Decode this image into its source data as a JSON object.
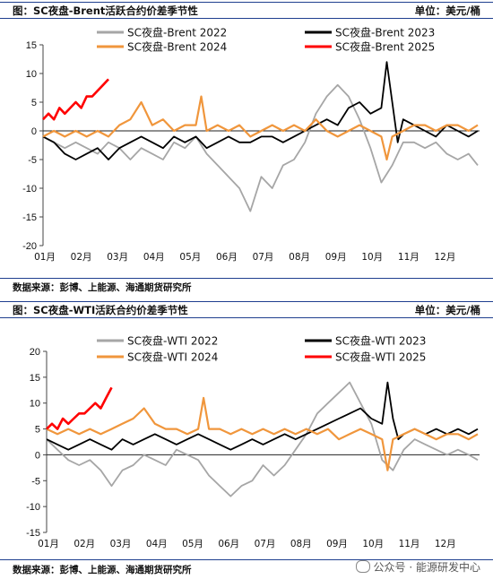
{
  "watermark": "公众号 · 能源研发中心",
  "chart_data": [
    {
      "type": "line",
      "title": "图：SC夜盘-Brent活跃合约价差季节性",
      "unit": "单位：美元/桶",
      "source": "数据来源：彭博、上能源、海通期货研究所",
      "ylim": [
        -20,
        15
      ],
      "yticks": [
        -20,
        -15,
        -10,
        -5,
        0,
        5,
        10,
        15
      ],
      "categories": [
        "01月",
        "02月",
        "03月",
        "04月",
        "05月",
        "06月",
        "07月",
        "08月",
        "09月",
        "10月",
        "11月",
        "12月"
      ],
      "x_label_positions": [
        0,
        1,
        2,
        3,
        4,
        5,
        6,
        7,
        8,
        9,
        10,
        11
      ],
      "grid": false,
      "legend_position": "top",
      "series": [
        {
          "name": "SC夜盘-Brent 2022",
          "color": "#a6a6a6",
          "x": [
            0,
            0.3,
            0.6,
            0.9,
            1.2,
            1.5,
            1.8,
            2.1,
            2.4,
            2.7,
            3.0,
            3.3,
            3.6,
            3.9,
            4.2,
            4.5,
            4.8,
            5.1,
            5.4,
            5.7,
            6.0,
            6.3,
            6.6,
            6.9,
            7.2,
            7.5,
            7.8,
            8.1,
            8.4,
            8.7,
            9.0,
            9.3,
            9.6,
            9.9,
            10.2,
            10.5,
            10.8,
            11.1,
            11.4,
            11.7,
            11.95
          ],
          "values": [
            -1,
            -2,
            -3,
            -2,
            -3,
            -4,
            -2,
            -3,
            -5,
            -3,
            -4,
            -5,
            -2,
            -3,
            -1,
            -4,
            -6,
            -8,
            -10,
            -14,
            -8,
            -10,
            -6,
            -5,
            -2,
            3,
            6,
            8,
            6,
            2,
            -3,
            -9,
            -6,
            -2,
            -2,
            -3,
            -2,
            -4,
            -5,
            -4,
            -6
          ]
        },
        {
          "name": "SC夜盘-Brent 2023",
          "color": "#000000",
          "x": [
            0,
            0.3,
            0.6,
            0.9,
            1.2,
            1.5,
            1.8,
            2.1,
            2.4,
            2.7,
            3.0,
            3.3,
            3.6,
            3.9,
            4.2,
            4.5,
            4.8,
            5.1,
            5.4,
            5.7,
            6.0,
            6.3,
            6.6,
            6.9,
            7.2,
            7.5,
            7.8,
            8.1,
            8.4,
            8.7,
            9.0,
            9.3,
            9.45,
            9.6,
            9.75,
            9.9,
            10.2,
            10.5,
            10.8,
            11.1,
            11.4,
            11.7,
            11.95
          ],
          "values": [
            -1,
            -2,
            -4,
            -5,
            -4,
            -3,
            -5,
            -3,
            -2,
            -1,
            -2,
            -3,
            -1,
            -2,
            -1,
            -3,
            -2,
            -1,
            -2,
            -2,
            -1,
            -1,
            -2,
            -1,
            0,
            1,
            2,
            1,
            4,
            5,
            3,
            4,
            12,
            5,
            -2,
            2,
            1,
            0,
            -1,
            1,
            0,
            -1,
            0
          ]
        },
        {
          "name": "SC夜盘-Brent 2024",
          "color": "#f0963c",
          "x": [
            0,
            0.3,
            0.6,
            0.9,
            1.2,
            1.5,
            1.8,
            2.1,
            2.4,
            2.7,
            3.0,
            3.3,
            3.6,
            3.9,
            4.2,
            4.35,
            4.5,
            4.8,
            5.1,
            5.4,
            5.7,
            6.0,
            6.3,
            6.6,
            6.9,
            7.2,
            7.5,
            7.8,
            8.1,
            8.4,
            8.7,
            9.0,
            9.3,
            9.45,
            9.6,
            9.9,
            10.2,
            10.5,
            10.8,
            11.1,
            11.4,
            11.7,
            11.95
          ],
          "values": [
            -1,
            0,
            -1,
            0,
            -1,
            0,
            -1,
            1,
            2,
            5,
            1,
            2,
            0,
            1,
            1,
            6,
            0,
            1,
            0,
            1,
            -1,
            0,
            1,
            0,
            1,
            0,
            2,
            0,
            -1,
            0,
            1,
            0,
            -1,
            -5,
            -1,
            0,
            1,
            1,
            0,
            1,
            1,
            0,
            1
          ]
        },
        {
          "name": "SC夜盘-Brent 2025",
          "color": "#ff0000",
          "x": [
            0,
            0.15,
            0.3,
            0.45,
            0.6,
            0.75,
            0.9,
            1.05,
            1.2,
            1.35,
            1.5,
            1.65,
            1.8
          ],
          "values": [
            2,
            3,
            2,
            4,
            3,
            4,
            5,
            4,
            6,
            6,
            7,
            8,
            9
          ]
        }
      ]
    },
    {
      "type": "line",
      "title": "图：SC夜盘-WTI活跃合约价差季节性",
      "unit": "单位：美元/桶",
      "source": "数据来源：彭博、上能源、海通期货研究所",
      "ylim": [
        -15,
        20
      ],
      "yticks": [
        -15,
        -10,
        -5,
        0,
        5,
        10,
        15,
        20
      ],
      "categories": [
        "01月",
        "02月",
        "03月",
        "04月",
        "05月",
        "06月",
        "07月",
        "08月",
        "09月",
        "10月",
        "11月",
        "12月"
      ],
      "x_label_positions": [
        0,
        1,
        2,
        3,
        4,
        5,
        6,
        7,
        8,
        9,
        10,
        11
      ],
      "grid": false,
      "legend_position": "top",
      "series": [
        {
          "name": "SC夜盘-WTI 2022",
          "color": "#a6a6a6",
          "x": [
            0,
            0.3,
            0.6,
            0.9,
            1.2,
            1.5,
            1.8,
            2.1,
            2.4,
            2.7,
            3.0,
            3.3,
            3.6,
            3.9,
            4.2,
            4.5,
            4.8,
            5.1,
            5.4,
            5.7,
            6.0,
            6.3,
            6.6,
            6.9,
            7.2,
            7.5,
            7.8,
            8.1,
            8.4,
            8.7,
            9.0,
            9.3,
            9.6,
            9.9,
            10.2,
            10.5,
            10.8,
            11.1,
            11.4,
            11.7,
            11.95
          ],
          "values": [
            3,
            1,
            -1,
            -2,
            -1,
            -3,
            -6,
            -3,
            -2,
            0,
            -1,
            -2,
            1,
            0,
            -1,
            -4,
            -6,
            -8,
            -6,
            -5,
            -2,
            -4,
            -2,
            1,
            4,
            8,
            10,
            12,
            14,
            10,
            6,
            -1,
            -3,
            1,
            3,
            2,
            1,
            0,
            1,
            0,
            -1
          ]
        },
        {
          "name": "SC夜盘-WTI 2023",
          "color": "#000000",
          "x": [
            0,
            0.3,
            0.6,
            0.9,
            1.2,
            1.5,
            1.8,
            2.1,
            2.4,
            2.7,
            3.0,
            3.3,
            3.6,
            3.9,
            4.2,
            4.5,
            4.8,
            5.1,
            5.4,
            5.7,
            6.0,
            6.3,
            6.6,
            6.9,
            7.2,
            7.5,
            7.8,
            8.1,
            8.4,
            8.7,
            9.0,
            9.3,
            9.45,
            9.6,
            9.75,
            9.9,
            10.2,
            10.5,
            10.8,
            11.1,
            11.4,
            11.7,
            11.95
          ],
          "values": [
            3,
            2,
            1,
            2,
            3,
            2,
            1,
            3,
            2,
            3,
            4,
            3,
            2,
            3,
            4,
            3,
            2,
            1,
            2,
            3,
            2,
            3,
            4,
            3,
            4,
            5,
            6,
            7,
            8,
            9,
            7,
            6,
            14,
            7,
            3,
            4,
            5,
            4,
            5,
            4,
            5,
            4,
            5
          ]
        },
        {
          "name": "SC夜盘-WTI 2024",
          "color": "#f0963c",
          "x": [
            0,
            0.3,
            0.6,
            0.9,
            1.2,
            1.5,
            1.8,
            2.1,
            2.4,
            2.7,
            3.0,
            3.3,
            3.6,
            3.9,
            4.2,
            4.35,
            4.5,
            4.8,
            5.1,
            5.4,
            5.7,
            6.0,
            6.3,
            6.6,
            6.9,
            7.2,
            7.5,
            7.8,
            8.1,
            8.4,
            8.7,
            9.0,
            9.3,
            9.45,
            9.6,
            9.9,
            10.2,
            10.5,
            10.8,
            11.1,
            11.4,
            11.7,
            11.95
          ],
          "values": [
            5,
            4,
            5,
            4,
            5,
            4,
            5,
            6,
            7,
            9,
            6,
            5,
            5,
            4,
            5,
            11,
            5,
            5,
            4,
            5,
            4,
            5,
            4,
            5,
            4,
            5,
            4,
            5,
            3,
            4,
            5,
            4,
            3,
            -3,
            3,
            4,
            5,
            4,
            3,
            4,
            4,
            3,
            4
          ]
        },
        {
          "name": "SC夜盘-WTI 2025",
          "color": "#ff0000",
          "x": [
            0,
            0.15,
            0.3,
            0.45,
            0.6,
            0.75,
            0.9,
            1.05,
            1.2,
            1.35,
            1.5,
            1.65,
            1.8
          ],
          "values": [
            5,
            6,
            5,
            7,
            6,
            7,
            8,
            8,
            9,
            10,
            9,
            11,
            13
          ]
        }
      ]
    }
  ]
}
